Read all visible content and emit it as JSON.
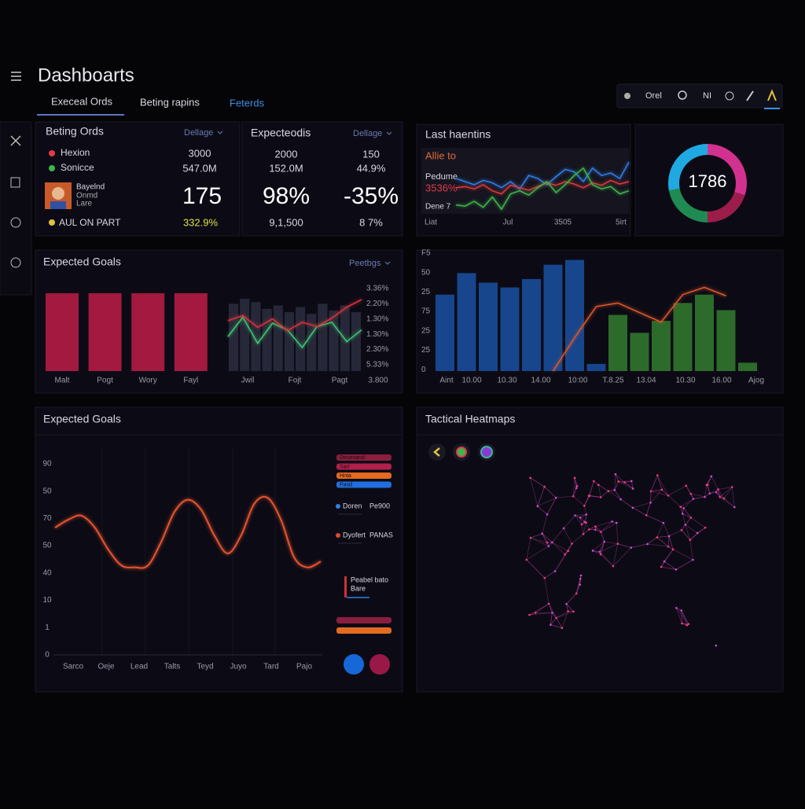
{
  "header": {
    "title": "Dashboarts",
    "tabs": [
      "Execeal Ords",
      "Beting rapins",
      "Feterds"
    ],
    "toolbar": [
      "Orel",
      "NI"
    ]
  },
  "betting": {
    "title": "Beting Ords",
    "filter": "Dellage",
    "rows": [
      [
        "Hexion",
        "3000"
      ],
      [
        "Sonicce",
        "547.0M"
      ]
    ],
    "player": [
      "Bayelnd",
      "Onmd",
      "Lare"
    ],
    "big": "175",
    "footer": [
      "AUL ON PART",
      "332.9%"
    ]
  },
  "expected": {
    "title": "Expecteodis",
    "filter": "Dellage",
    "rows": [
      [
        "2000",
        "150"
      ],
      [
        "152.0M",
        "44.9%"
      ],
      [
        "98%",
        "-35%"
      ],
      [
        "9,1,500",
        "8 7%"
      ]
    ]
  },
  "trend": {
    "title": "Last haentins",
    "labels": [
      "Allie to",
      "Pedume",
      "3536%",
      "Dene 7"
    ],
    "x_labels": [
      "Liat",
      "Jul",
      "3505",
      "5irt"
    ],
    "ylim": [
      0,
      100
    ],
    "series": [
      {
        "color": "#2f7fe6",
        "values": [
          55,
          50,
          45,
          52,
          48,
          40,
          50,
          38,
          60,
          55,
          45,
          58,
          70,
          66,
          50,
          72,
          60,
          64,
          55,
          82
        ]
      },
      {
        "color": "#d83a3a",
        "values": [
          40,
          42,
          38,
          45,
          35,
          30,
          44,
          40,
          36,
          42,
          48,
          44,
          50,
          46,
          40,
          48,
          44,
          52,
          46,
          50
        ]
      },
      {
        "color": "#3fb54a",
        "values": [
          12,
          10,
          18,
          8,
          25,
          5,
          30,
          35,
          28,
          40,
          50,
          32,
          45,
          60,
          72,
          45,
          38,
          42,
          30,
          35
        ]
      }
    ]
  },
  "donut": {
    "label": "1786",
    "values": [
      30,
      20,
      22,
      28
    ],
    "colors": [
      "#d2318f",
      "#9c1d4a",
      "#1f8a52",
      "#1fa9e0"
    ]
  },
  "goals": {
    "title": "Expected Goals",
    "filter": "Peetbgs",
    "bars": {
      "color": "#a3193f",
      "ylim": [
        0,
        100
      ],
      "values": [
        75,
        75,
        75,
        75
      ],
      "categories": [
        "Malt",
        "Pogt",
        "Wory",
        "Fayl"
      ]
    },
    "mini": {
      "ylim": [
        0,
        100
      ],
      "bars": {
        "color": "#262839",
        "values": [
          80,
          86,
          82,
          74,
          78,
          70,
          76,
          68,
          80,
          72,
          78,
          70
        ]
      },
      "series": [
        {
          "color": "#3fc870",
          "values": [
            41,
            64,
            33,
            57,
            49,
            28,
            53,
            58,
            35,
            49
          ]
        },
        {
          "color": "#d8343c",
          "values": [
            60,
            66,
            52,
            62,
            48,
            58,
            53,
            63,
            76,
            85
          ]
        }
      ],
      "y_labels": [
        "3.36%",
        "2.20%",
        "1.30%",
        "1.30%",
        "2.30%",
        "5.33%"
      ],
      "x_labels": [
        "Jwil",
        "Fojt",
        "Pagt",
        "3.800"
      ]
    }
  },
  "combo": {
    "ylim": [
      0,
      100
    ],
    "y_labels": [
      "F5",
      "50",
      "25",
      "75",
      "25",
      "25",
      "0"
    ],
    "x_labels": [
      "Aint",
      "10.00",
      "10.30",
      "14.00",
      "10:00",
      "T.8.25",
      "13.04",
      "10.30",
      "16.00",
      "Ajog"
    ],
    "bars": [
      {
        "color": "#17468c",
        "values": [
          64,
          82,
          74,
          70,
          77,
          89,
          93,
          6
        ]
      },
      {
        "color": "#2c6b2a",
        "values": [
          47,
          32,
          42,
          57,
          64,
          51,
          7
        ]
      }
    ],
    "line": {
      "color": "#e0582a",
      "values": [
        null,
        null,
        null,
        null,
        null,
        0,
        28,
        54,
        57,
        49,
        41,
        64,
        70,
        63,
        null
      ]
    }
  },
  "goals_line": {
    "title": "Expected Goals",
    "ylim": [
      0,
      100
    ],
    "color": "#e5532f",
    "values": [
      64,
      68,
      70,
      64,
      53,
      45,
      44,
      45,
      57,
      72,
      78,
      73,
      60,
      51,
      60,
      76,
      79,
      68,
      49,
      44,
      47
    ],
    "y_labels": [
      "90",
      "50",
      "70",
      "50",
      "40",
      "10",
      "1",
      "0"
    ],
    "x_labels": [
      "Sarco",
      "Oeje",
      "Lead",
      "Talts",
      "Teyd",
      "Juyo",
      "Tard",
      "Pajo"
    ],
    "legend": {
      "bars": [
        {
          "color": "#8b1e3f",
          "label": "Desenand"
        },
        {
          "color": "#b0204a",
          "label": "Sarr"
        },
        {
          "color": "#e36a1f",
          "label": "Hnta"
        },
        {
          "color": "#1f6fe0",
          "label": "Pasd"
        }
      ],
      "entries": [
        {
          "color": "#2f7fe6",
          "name": "Doren",
          "value": "Pe900"
        },
        {
          "color": "#e04a2a",
          "name": "Dyofert",
          "value": "PANAS"
        }
      ],
      "note": [
        "Peabel bato",
        "Bare"
      ],
      "bottom_bars": [
        "#8b1e3f",
        "#e36a1f"
      ],
      "dots": [
        "#1668d8",
        "#9a1848"
      ]
    }
  },
  "heatmap": {
    "title": "Tactical Heatmaps"
  }
}
